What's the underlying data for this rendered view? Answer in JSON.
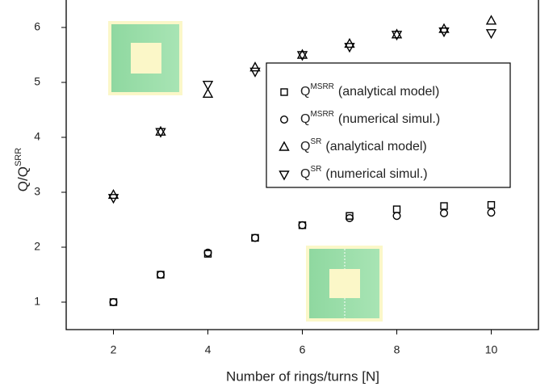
{
  "chart_data": {
    "type": "scatter",
    "x_label": "Number of rings/turns [N]",
    "y_label": {
      "base": "Q/Q",
      "sup": "SRR"
    },
    "xlim": [
      1,
      11
    ],
    "ylim": [
      0.5,
      6.5
    ],
    "xticks": [
      2,
      4,
      6,
      8,
      10
    ],
    "yticks": [
      1,
      2,
      3,
      4,
      5,
      6
    ],
    "x": [
      2,
      3,
      4,
      5,
      6,
      7,
      8,
      9,
      10
    ],
    "series": [
      {
        "name": {
          "base": "Q",
          "sup": "MSRR",
          "rest": "(analytical model)"
        },
        "marker": "square",
        "color": "#000000",
        "values": [
          1.0,
          1.5,
          1.88,
          2.17,
          2.4,
          2.57,
          2.69,
          2.75,
          2.77
        ]
      },
      {
        "name": {
          "base": "Q",
          "sup": "MSRR",
          "rest": "(numerical simul.)"
        },
        "marker": "circle",
        "color": "#000000",
        "values": [
          1.0,
          1.5,
          1.9,
          2.17,
          2.4,
          2.53,
          2.57,
          2.62,
          2.63
        ]
      },
      {
        "name": {
          "base": "Q",
          "sup": "SR",
          "rest": "(analytical model)"
        },
        "marker": "triangle-up",
        "color": "#000000",
        "values": [
          2.95,
          4.1,
          4.79,
          5.27,
          5.5,
          5.7,
          5.87,
          5.97,
          6.12
        ]
      },
      {
        "name": {
          "base": "Q",
          "sup": "SR",
          "rest": "(numerical simul.)"
        },
        "marker": "triangle-down",
        "color": "#000000",
        "values": [
          2.9,
          4.1,
          4.96,
          5.2,
          5.5,
          5.65,
          5.87,
          5.93,
          5.9
        ]
      }
    ]
  }
}
